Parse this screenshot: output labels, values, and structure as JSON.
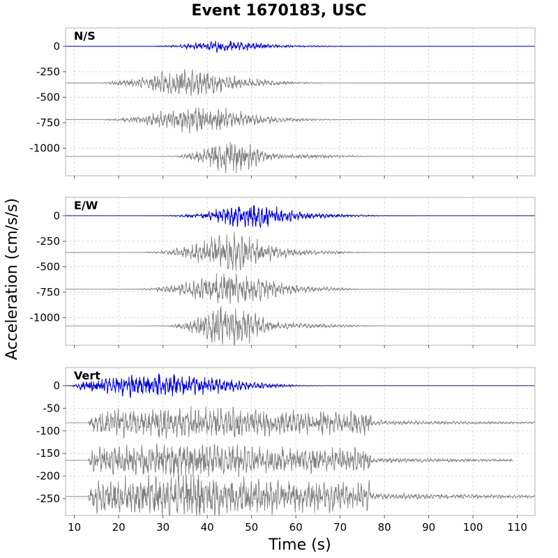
{
  "title": "Event 1670183, USC",
  "ylabel": "Acceleration (cm/s/s)",
  "xlabel": "Time (s)",
  "colors": {
    "observed": "#0000ee",
    "synthetic": "#808080",
    "grid": "#d0d0d0",
    "frame": "#b0b0b0"
  },
  "chart_data": [
    {
      "type": "line",
      "label": "N/S",
      "xlim": [
        8,
        114
      ],
      "ylim": [
        -1270,
        180
      ],
      "xticks": [
        10,
        20,
        30,
        40,
        50,
        60,
        70,
        80,
        90,
        100,
        110
      ],
      "yticks": [
        0,
        -250,
        -500,
        -750,
        -1000
      ],
      "series": [
        {
          "offset": 0,
          "color": "blue",
          "amplitude": 60,
          "onset": 9,
          "end": 114,
          "center": 44,
          "width": 9,
          "shape": "gauss",
          "seed": 11
        },
        {
          "offset": -360,
          "color": "gray",
          "amplitude": 140,
          "onset": 15,
          "end": 114,
          "center": 36,
          "width": 12,
          "shape": "gauss",
          "seed": 23
        },
        {
          "offset": -720,
          "color": "gray",
          "amplitude": 140,
          "onset": 15,
          "end": 114,
          "center": 38,
          "width": 12,
          "shape": "gauss",
          "seed": 37
        },
        {
          "offset": -1080,
          "color": "gray",
          "amplitude": 190,
          "onset": 15,
          "end": 114,
          "center": 45,
          "width": 7,
          "shape": "gauss",
          "seed": 41
        }
      ]
    },
    {
      "type": "line",
      "label": "E/W",
      "xlim": [
        8,
        114
      ],
      "ylim": [
        -1270,
        180
      ],
      "xticks": [
        10,
        20,
        30,
        40,
        50,
        60,
        70,
        80,
        90,
        100,
        110
      ],
      "yticks": [
        0,
        -250,
        -500,
        -750,
        -1000
      ],
      "series": [
        {
          "offset": 0,
          "color": "blue",
          "amplitude": 130,
          "onset": 9,
          "end": 114,
          "center": 50,
          "width": 10,
          "shape": "gauss",
          "seed": 53
        },
        {
          "offset": -360,
          "color": "gray",
          "amplitude": 190,
          "onset": 15,
          "end": 114,
          "center": 45,
          "width": 10,
          "shape": "gauss",
          "seed": 61
        },
        {
          "offset": -720,
          "color": "gray",
          "amplitude": 180,
          "onset": 15,
          "end": 114,
          "center": 45,
          "width": 11,
          "shape": "gauss",
          "seed": 71
        },
        {
          "offset": -1080,
          "color": "gray",
          "amplitude": 220,
          "onset": 15,
          "end": 114,
          "center": 45,
          "width": 8,
          "shape": "gauss",
          "seed": 83
        }
      ]
    },
    {
      "type": "line",
      "label": "Vert",
      "xlim": [
        8,
        114
      ],
      "ylim": [
        -287,
        40
      ],
      "xticks": [
        10,
        20,
        30,
        40,
        50,
        60,
        70,
        80,
        90,
        100,
        110
      ],
      "yticks": [
        0,
        -50,
        -100,
        -150,
        -200,
        -250
      ],
      "series": [
        {
          "offset": 0,
          "color": "blue",
          "amplitude": 28,
          "onset": 9,
          "end": 114,
          "center": 28,
          "width": 18,
          "shape": "gauss",
          "seed": 97
        },
        {
          "offset": -82,
          "color": "gray",
          "amplitude": 42,
          "onset": 13,
          "end": 114,
          "center": 35,
          "width": 30,
          "shape": "box",
          "seed": 101
        },
        {
          "offset": -165,
          "color": "gray",
          "amplitude": 42,
          "onset": 13,
          "end": 109,
          "center": 35,
          "width": 30,
          "shape": "box",
          "seed": 113
        },
        {
          "offset": -245,
          "color": "gray",
          "amplitude": 55,
          "onset": 13,
          "end": 114,
          "center": 35,
          "width": 30,
          "shape": "box",
          "seed": 127
        }
      ]
    }
  ]
}
